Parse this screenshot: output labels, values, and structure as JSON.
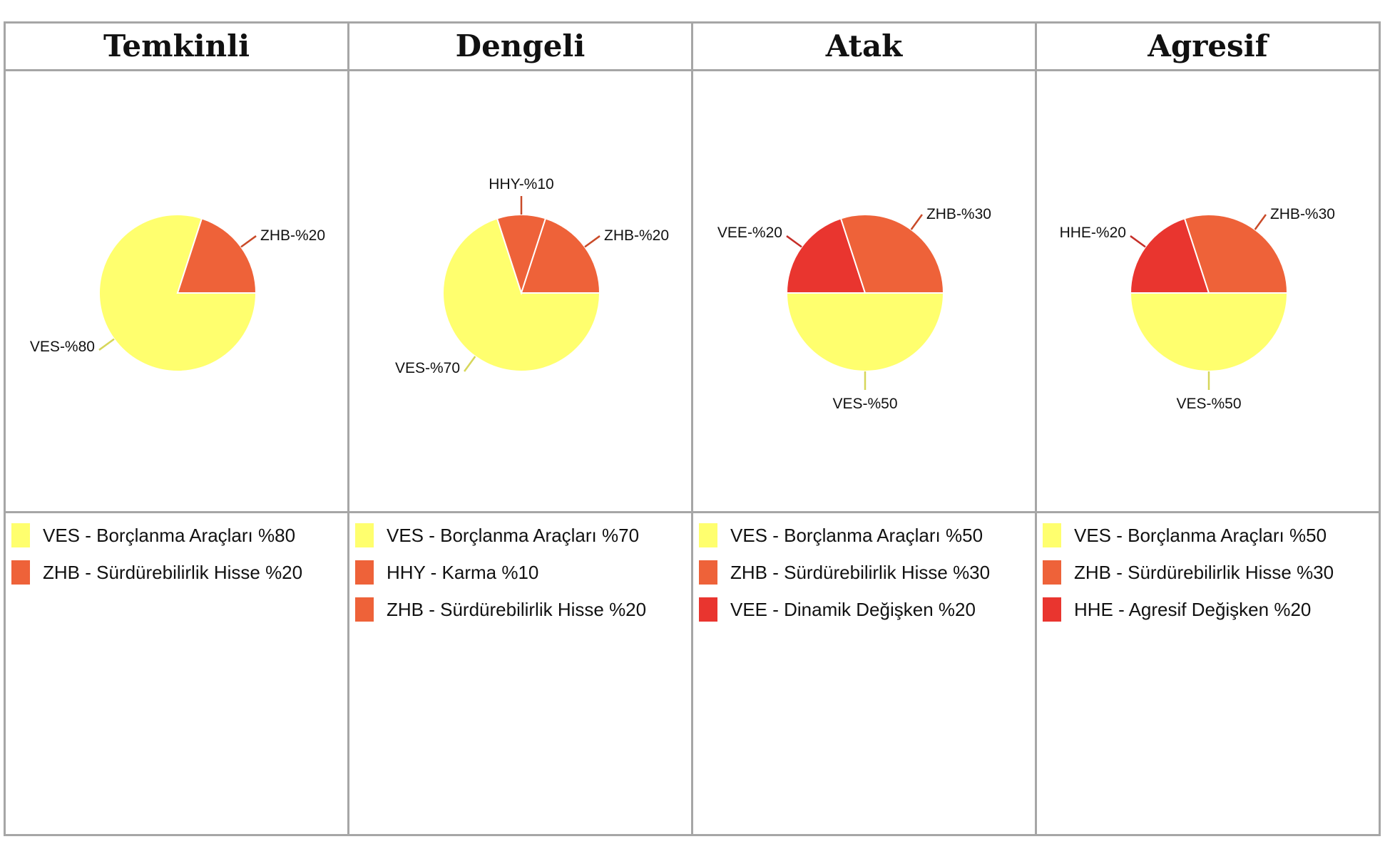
{
  "colors": {
    "VES": "#ffff6e",
    "ZHB": "#ee6239",
    "HHY": "#ee6239",
    "VEE": "#e9352f",
    "HHE": "#e9352f",
    "leader_VES": "#d6d65a",
    "leader_ZHB": "#c94a28",
    "leader_HHY": "#c94a28",
    "leader_VEE": "#c62e28",
    "leader_HHE": "#c62e28"
  },
  "chart_data": [
    {
      "type": "pie",
      "title": "Temkinli",
      "slices": [
        {
          "code": "VES",
          "value": 80,
          "label": "VES-%80"
        },
        {
          "code": "ZHB",
          "value": 20,
          "label": "ZHB-%20"
        }
      ],
      "legend": [
        {
          "code": "VES",
          "text": "VES - Borçlanma Araçları %80"
        },
        {
          "code": "ZHB",
          "text": "ZHB - Sürdürebilirlik Hisse %20"
        }
      ]
    },
    {
      "type": "pie",
      "title": "Dengeli",
      "slices": [
        {
          "code": "VES",
          "value": 70,
          "label": "VES-%70"
        },
        {
          "code": "HHY",
          "value": 10,
          "label": "HHY-%10"
        },
        {
          "code": "ZHB",
          "value": 20,
          "label": "ZHB-%20"
        }
      ],
      "legend": [
        {
          "code": "VES",
          "text": "VES - Borçlanma Araçları %70"
        },
        {
          "code": "HHY",
          "text": "HHY - Karma %10"
        },
        {
          "code": "ZHB",
          "text": "ZHB - Sürdürebilirlik Hisse %20"
        }
      ]
    },
    {
      "type": "pie",
      "title": "Atak",
      "slices": [
        {
          "code": "VES",
          "value": 50,
          "label": "VES-%50"
        },
        {
          "code": "VEE",
          "value": 20,
          "label": "VEE-%20"
        },
        {
          "code": "ZHB",
          "value": 30,
          "label": "ZHB-%30"
        }
      ],
      "legend": [
        {
          "code": "VES",
          "text": "VES - Borçlanma Araçları %50"
        },
        {
          "code": "ZHB",
          "text": "ZHB - Sürdürebilirlik Hisse %30"
        },
        {
          "code": "VEE",
          "text": "VEE - Dinamik Değişken %20"
        }
      ]
    },
    {
      "type": "pie",
      "title": "Agresif",
      "slices": [
        {
          "code": "VES",
          "value": 50,
          "label": "VES-%50"
        },
        {
          "code": "HHE",
          "value": 20,
          "label": "HHE-%20"
        },
        {
          "code": "ZHB",
          "value": 30,
          "label": "ZHB-%30"
        }
      ],
      "legend": [
        {
          "code": "VES",
          "text": "VES - Borçlanma Araçları %50"
        },
        {
          "code": "ZHB",
          "text": "ZHB - Sürdürebilirlik Hisse %30"
        },
        {
          "code": "HHE",
          "text": "HHE - Agresif Değişken %20"
        }
      ]
    }
  ]
}
